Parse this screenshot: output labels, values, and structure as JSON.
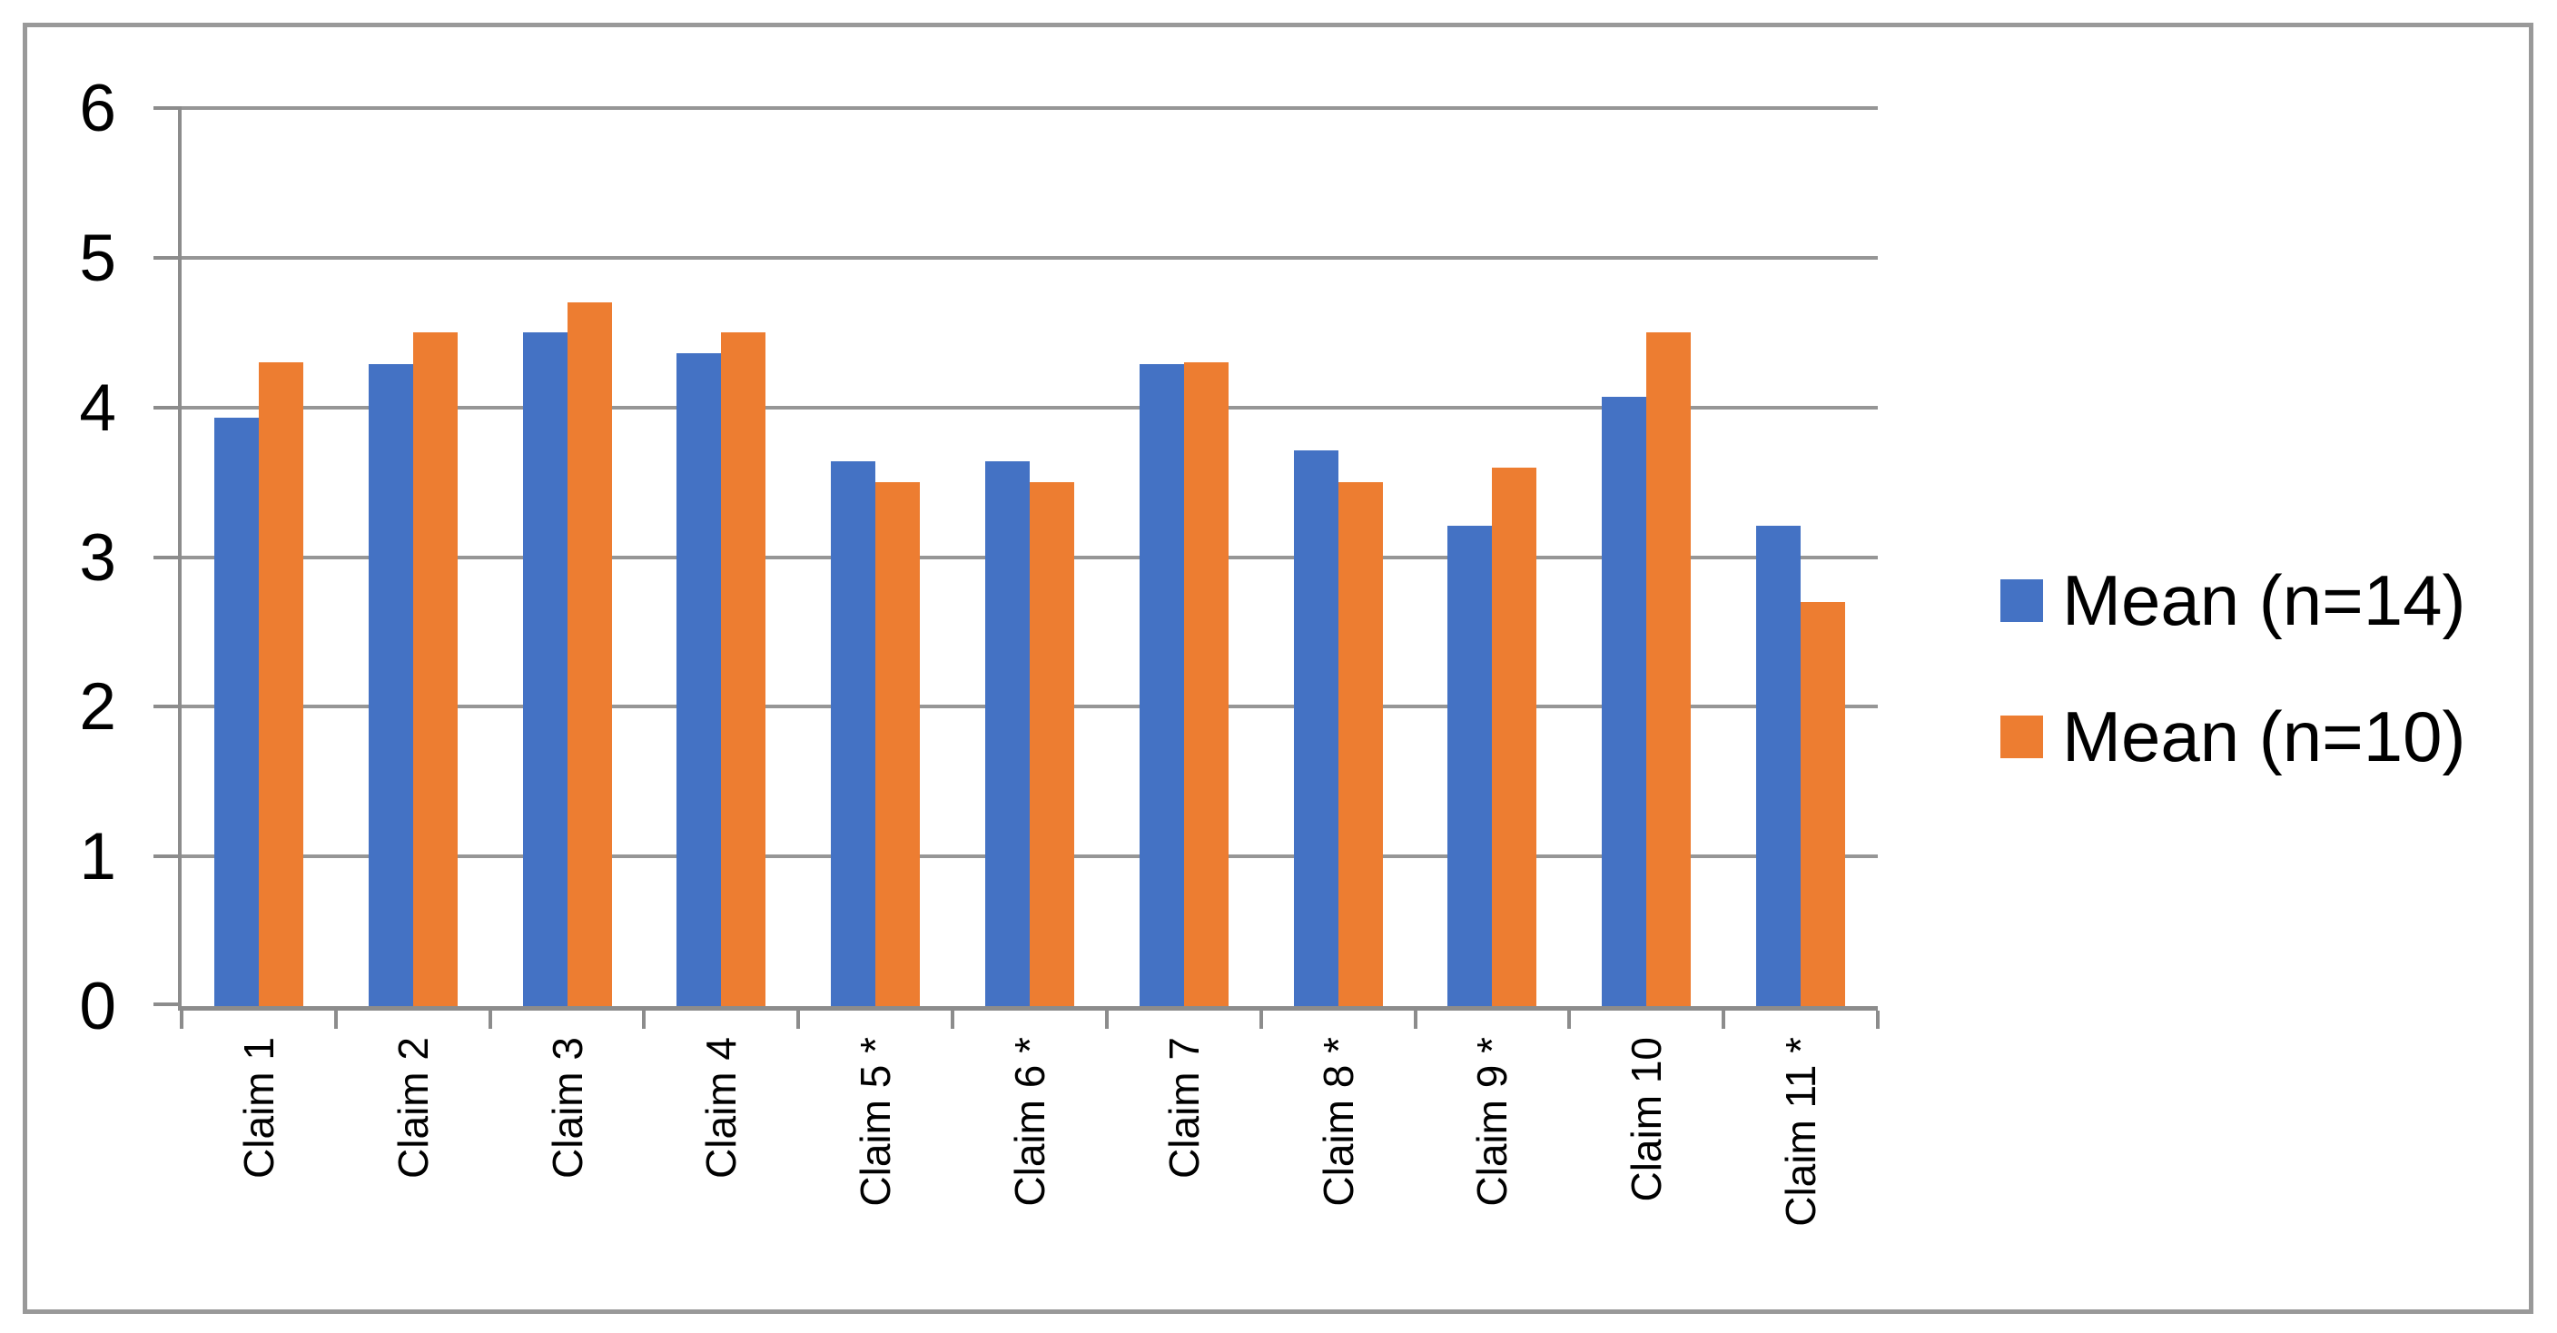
{
  "chart_data": {
    "type": "bar",
    "title": "",
    "xlabel": "",
    "ylabel": "",
    "categories": [
      "Claim 1",
      "Claim 2",
      "Claim 3",
      "Claim 4",
      "Claim 5 *",
      "Claim 6 *",
      "Claim 7",
      "Claim 8 *",
      "Claim 9 *",
      "Claim 10",
      "Claim 11 *"
    ],
    "series": [
      {
        "name": "Mean (n=14)",
        "color": "#4472C4",
        "values": [
          3.93,
          4.29,
          4.5,
          4.36,
          3.64,
          3.64,
          4.29,
          3.71,
          3.21,
          4.07,
          3.21
        ]
      },
      {
        "name": "Mean (n=10)",
        "color": "#ED7D31",
        "values": [
          4.3,
          4.5,
          4.7,
          4.5,
          3.5,
          3.5,
          4.3,
          3.5,
          3.6,
          4.5,
          2.7
        ]
      }
    ],
    "ylim": [
      0,
      6
    ],
    "yticks": [
      0,
      1,
      2,
      3,
      4,
      5,
      6
    ],
    "grid": true,
    "legend_position": "right"
  },
  "style": {
    "gridline_color": "#969696",
    "axis_color": "#8C8C8C",
    "frame_border_color": "#999999",
    "text_color": "#000000",
    "background_color": "#FFFFFF"
  }
}
